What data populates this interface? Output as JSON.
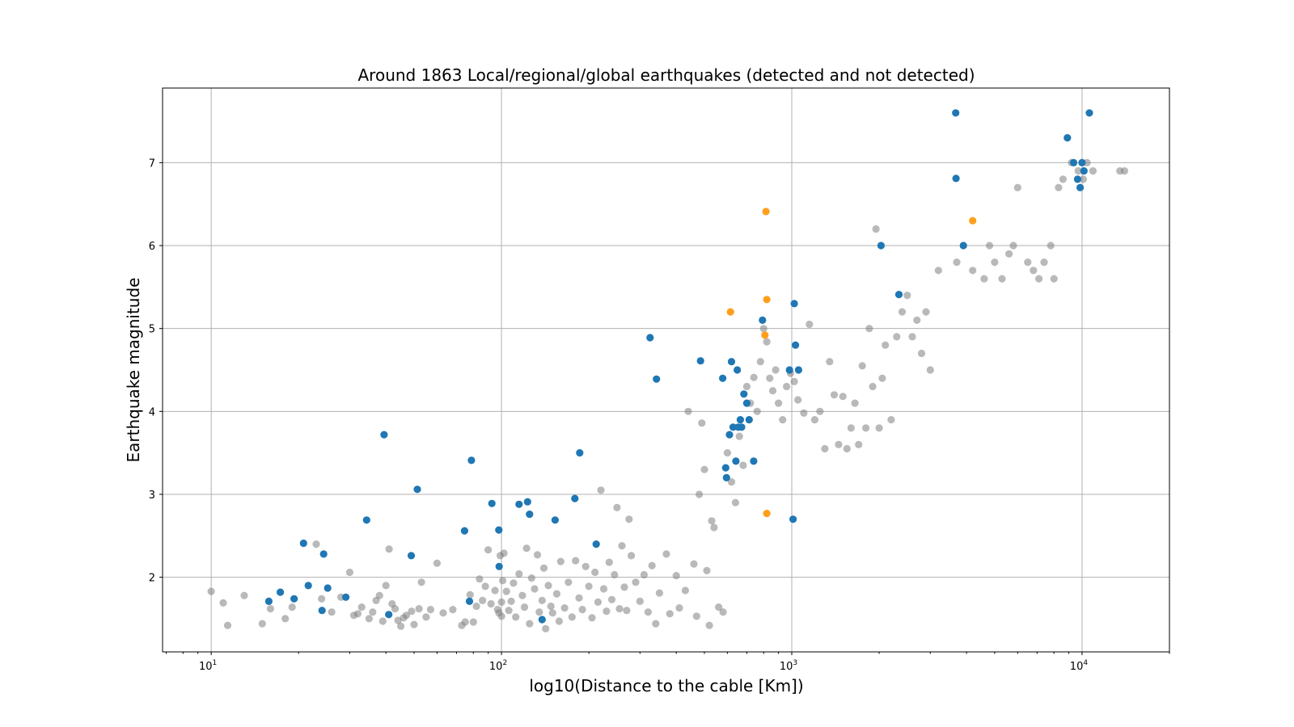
{
  "chart_data": {
    "type": "scatter",
    "title": "Around 1863 Local/regional/global earthquakes (detected and not detected)",
    "xlabel": "log10(Distance to the cable [Km])",
    "ylabel": "Earthquake magnitude",
    "x_scale": "log",
    "xlim": [
      6.8,
      20000
    ],
    "ylim": [
      1.1,
      7.9
    ],
    "x_ticks": [
      10,
      100,
      1000,
      10000
    ],
    "x_tick_labels": [
      {
        "base": "10",
        "exp": "1"
      },
      {
        "base": "10",
        "exp": "2"
      },
      {
        "base": "10",
        "exp": "3"
      },
      {
        "base": "10",
        "exp": "4"
      }
    ],
    "y_ticks": [
      2,
      3,
      4,
      5,
      6,
      7
    ],
    "y_tick_labels": [
      "2",
      "3",
      "4",
      "5",
      "6",
      "7"
    ],
    "grid": true,
    "series": [
      {
        "color": "#808080",
        "opacity": 0.55,
        "points": [
          [
            10,
            1.83
          ],
          [
            11,
            1.69
          ],
          [
            11.4,
            1.42
          ],
          [
            13,
            1.78
          ],
          [
            15,
            1.44
          ],
          [
            16,
            1.62
          ],
          [
            18,
            1.5
          ],
          [
            19,
            1.64
          ],
          [
            23,
            2.4
          ],
          [
            24,
            1.74
          ],
          [
            26,
            1.58
          ],
          [
            28,
            1.76
          ],
          [
            30,
            2.06
          ],
          [
            31,
            1.54
          ],
          [
            32,
            1.56
          ],
          [
            33,
            1.64
          ],
          [
            35,
            1.5
          ],
          [
            36,
            1.58
          ],
          [
            37,
            1.72
          ],
          [
            38,
            1.78
          ],
          [
            39,
            1.47
          ],
          [
            40,
            1.9
          ],
          [
            41,
            2.34
          ],
          [
            42,
            1.68
          ],
          [
            43,
            1.62
          ],
          [
            44,
            1.48
          ],
          [
            45,
            1.41
          ],
          [
            46,
            1.51
          ],
          [
            47,
            1.54
          ],
          [
            49,
            1.59
          ],
          [
            50,
            1.43
          ],
          [
            52,
            1.62
          ],
          [
            53,
            1.94
          ],
          [
            55,
            1.52
          ],
          [
            57,
            1.61
          ],
          [
            60,
            2.17
          ],
          [
            63,
            1.57
          ],
          [
            68,
            1.61
          ],
          [
            73,
            1.42
          ],
          [
            75,
            1.46
          ],
          [
            78,
            1.79
          ],
          [
            80,
            1.46
          ],
          [
            82,
            1.65
          ],
          [
            84,
            1.98
          ],
          [
            86,
            1.72
          ],
          [
            88,
            1.89
          ],
          [
            90,
            2.33
          ],
          [
            92,
            1.68
          ],
          [
            95,
            1.84
          ],
          [
            97,
            1.61
          ],
          [
            98,
            1.57
          ],
          [
            99,
            2.26
          ],
          [
            100,
            1.53
          ],
          [
            100,
            1.7
          ],
          [
            101,
            1.96
          ],
          [
            102,
            2.29
          ],
          [
            104,
            1.83
          ],
          [
            106,
            1.6
          ],
          [
            108,
            1.71
          ],
          [
            110,
            1.93
          ],
          [
            112,
            1.52
          ],
          [
            115,
            2.04
          ],
          [
            118,
            1.78
          ],
          [
            120,
            1.64
          ],
          [
            122,
            2.35
          ],
          [
            125,
            1.44
          ],
          [
            127,
            1.99
          ],
          [
            130,
            1.86
          ],
          [
            133,
            2.27
          ],
          [
            135,
            1.58
          ],
          [
            138,
            1.72
          ],
          [
            140,
            2.11
          ],
          [
            142,
            1.38
          ],
          [
            145,
            1.9
          ],
          [
            148,
            1.65
          ],
          [
            150,
            1.57
          ],
          [
            155,
            1.8
          ],
          [
            158,
            1.47
          ],
          [
            160,
            2.19
          ],
          [
            165,
            1.63
          ],
          [
            170,
            1.94
          ],
          [
            175,
            1.52
          ],
          [
            180,
            2.2
          ],
          [
            185,
            1.75
          ],
          [
            190,
            1.61
          ],
          [
            195,
            2.13
          ],
          [
            200,
            1.89
          ],
          [
            205,
            1.51
          ],
          [
            210,
            2.06
          ],
          [
            215,
            1.7
          ],
          [
            220,
            3.05
          ],
          [
            225,
            1.86
          ],
          [
            230,
            1.59
          ],
          [
            235,
            2.18
          ],
          [
            240,
            1.73
          ],
          [
            245,
            2.03
          ],
          [
            250,
            2.84
          ],
          [
            255,
            1.62
          ],
          [
            260,
            2.38
          ],
          [
            265,
            1.88
          ],
          [
            270,
            1.6
          ],
          [
            275,
            2.7
          ],
          [
            280,
            2.26
          ],
          [
            290,
            1.94
          ],
          [
            300,
            1.71
          ],
          [
            310,
            2.03
          ],
          [
            320,
            1.58
          ],
          [
            330,
            2.14
          ],
          [
            340,
            1.44
          ],
          [
            350,
            1.81
          ],
          [
            370,
            2.28
          ],
          [
            380,
            1.56
          ],
          [
            400,
            2.02
          ],
          [
            410,
            1.63
          ],
          [
            430,
            1.84
          ],
          [
            440,
            4.0
          ],
          [
            460,
            2.16
          ],
          [
            470,
            1.53
          ],
          [
            480,
            3.0
          ],
          [
            490,
            3.86
          ],
          [
            500,
            3.3
          ],
          [
            510,
            2.08
          ],
          [
            520,
            1.42
          ],
          [
            530,
            2.68
          ],
          [
            540,
            2.6
          ],
          [
            560,
            1.64
          ],
          [
            580,
            1.58
          ],
          [
            600,
            3.5
          ],
          [
            620,
            3.15
          ],
          [
            640,
            2.9
          ],
          [
            660,
            3.7
          ],
          [
            680,
            3.35
          ],
          [
            700,
            4.3
          ],
          [
            720,
            4.1
          ],
          [
            740,
            4.41
          ],
          [
            760,
            4.0
          ],
          [
            780,
            4.6
          ],
          [
            800,
            5.0
          ],
          [
            820,
            4.84
          ],
          [
            840,
            4.4
          ],
          [
            860,
            4.25
          ],
          [
            880,
            4.5
          ],
          [
            900,
            4.1
          ],
          [
            930,
            3.9
          ],
          [
            960,
            4.3
          ],
          [
            990,
            4.46
          ],
          [
            1020,
            4.36
          ],
          [
            1050,
            4.14
          ],
          [
            1100,
            3.98
          ],
          [
            1150,
            5.05
          ],
          [
            1200,
            3.9
          ],
          [
            1250,
            4.0
          ],
          [
            1300,
            3.55
          ],
          [
            1350,
            4.6
          ],
          [
            1400,
            4.2
          ],
          [
            1450,
            3.6
          ],
          [
            1500,
            4.18
          ],
          [
            1550,
            3.55
          ],
          [
            1600,
            3.8
          ],
          [
            1650,
            4.1
          ],
          [
            1700,
            3.6
          ],
          [
            1750,
            4.55
          ],
          [
            1800,
            3.8
          ],
          [
            1850,
            5.0
          ],
          [
            1900,
            4.3
          ],
          [
            1950,
            6.2
          ],
          [
            2000,
            3.8
          ],
          [
            2050,
            4.4
          ],
          [
            2100,
            4.8
          ],
          [
            2200,
            3.9
          ],
          [
            2300,
            4.9
          ],
          [
            2400,
            5.2
          ],
          [
            2500,
            5.4
          ],
          [
            2600,
            4.9
          ],
          [
            2700,
            5.1
          ],
          [
            2800,
            4.7
          ],
          [
            2900,
            5.2
          ],
          [
            3000,
            4.5
          ],
          [
            3200,
            5.7
          ],
          [
            3700,
            5.8
          ],
          [
            4200,
            5.7
          ],
          [
            4600,
            5.6
          ],
          [
            4800,
            6.0
          ],
          [
            5000,
            5.8
          ],
          [
            5300,
            5.6
          ],
          [
            5600,
            5.9
          ],
          [
            5800,
            6.0
          ],
          [
            6000,
            6.7
          ],
          [
            6500,
            5.8
          ],
          [
            6800,
            5.7
          ],
          [
            7100,
            5.6
          ],
          [
            7400,
            5.8
          ],
          [
            7800,
            6.0
          ],
          [
            8000,
            5.6
          ],
          [
            8300,
            6.7
          ],
          [
            8600,
            6.8
          ],
          [
            9200,
            7.0
          ],
          [
            9700,
            6.9
          ],
          [
            10100,
            6.8
          ],
          [
            10400,
            7.0
          ],
          [
            10900,
            6.9
          ],
          [
            13500,
            6.9
          ],
          [
            14000,
            6.9
          ]
        ]
      },
      {
        "color": "#1f77b4",
        "opacity": 1,
        "points": [
          [
            15.8,
            1.71
          ],
          [
            17.3,
            1.82
          ],
          [
            19.3,
            1.74
          ],
          [
            20.8,
            2.41
          ],
          [
            21.6,
            1.9
          ],
          [
            24.1,
            1.6
          ],
          [
            24.4,
            2.28
          ],
          [
            25.2,
            1.87
          ],
          [
            29.1,
            1.76
          ],
          [
            34.3,
            2.69
          ],
          [
            39.4,
            3.72
          ],
          [
            40.9,
            1.55
          ],
          [
            48.9,
            2.26
          ],
          [
            51.3,
            3.06
          ],
          [
            74.6,
            2.56
          ],
          [
            77.6,
            1.71
          ],
          [
            78.8,
            3.41
          ],
          [
            92.7,
            2.89
          ],
          [
            97.9,
            2.57
          ],
          [
            98.2,
            2.13
          ],
          [
            115,
            2.88
          ],
          [
            123,
            2.91
          ],
          [
            125,
            2.76
          ],
          [
            138,
            1.49
          ],
          [
            153,
            2.69
          ],
          [
            179,
            2.95
          ],
          [
            186,
            3.5
          ],
          [
            212,
            2.4
          ],
          [
            325,
            4.89
          ],
          [
            342,
            4.39
          ],
          [
            485,
            4.61
          ],
          [
            578,
            4.4
          ],
          [
            592,
            3.32
          ],
          [
            596,
            3.2
          ],
          [
            610,
            3.72
          ],
          [
            620,
            4.6
          ],
          [
            628,
            3.81
          ],
          [
            642,
            3.4
          ],
          [
            649,
            4.5
          ],
          [
            654,
            3.81
          ],
          [
            665,
            3.9
          ],
          [
            672,
            3.81
          ],
          [
            684,
            4.21
          ],
          [
            700,
            4.1
          ],
          [
            713,
            3.9
          ],
          [
            739,
            3.4
          ],
          [
            793,
            5.1
          ],
          [
            982,
            4.5
          ],
          [
            1020,
            5.3
          ],
          [
            1030,
            4.8
          ],
          [
            1010,
            2.7
          ],
          [
            1055,
            4.5
          ],
          [
            2030,
            6.0
          ],
          [
            2340,
            5.41
          ],
          [
            3670,
            7.6
          ],
          [
            3680,
            6.81
          ],
          [
            3900,
            6.0
          ],
          [
            8900,
            7.3
          ],
          [
            9350,
            7.0
          ],
          [
            9650,
            6.8
          ],
          [
            9850,
            6.7
          ],
          [
            10000,
            7.0
          ],
          [
            10150,
            6.9
          ],
          [
            10600,
            7.6
          ]
        ]
      },
      {
        "color": "#ff9f1c",
        "opacity": 1,
        "points": [
          [
            615,
            5.2
          ],
          [
            815,
            6.41
          ],
          [
            820,
            5.35
          ],
          [
            808,
            4.92
          ],
          [
            820,
            2.77
          ],
          [
            4200,
            6.3
          ]
        ]
      }
    ]
  }
}
